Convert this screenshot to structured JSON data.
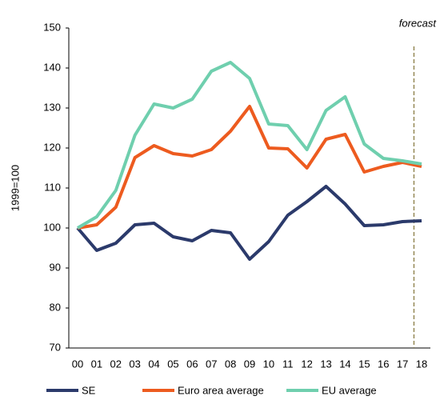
{
  "chart_data": {
    "type": "line",
    "annotation": "forecast",
    "y_label": "1999=100",
    "categories": [
      "00",
      "01",
      "02",
      "03",
      "04",
      "05",
      "06",
      "07",
      "08",
      "09",
      "10",
      "11",
      "12",
      "13",
      "14",
      "15",
      "16",
      "17",
      "18"
    ],
    "series": [
      {
        "name": "SE",
        "color": "#2b3a6b",
        "values": [
          100,
          94.4,
          96.2,
          100.8,
          101.2,
          97.8,
          96.8,
          99.4,
          98.8,
          92.2,
          96.6,
          103.2,
          106.6,
          110.4,
          106,
          100.6,
          100.8,
          101.6,
          101.8
        ]
      },
      {
        "name": "Euro area average",
        "color": "#ed5b1f",
        "values": [
          100,
          100.8,
          105.2,
          117.6,
          120.6,
          118.6,
          118,
          119.6,
          124.2,
          130.4,
          120,
          119.8,
          115,
          122.2,
          123.4,
          114,
          115.4,
          116.4,
          115.4
        ]
      },
      {
        "name": "EU average",
        "color": "#6fcfae",
        "values": [
          100,
          102.8,
          109.4,
          123.2,
          131,
          130,
          132.2,
          139.2,
          141.4,
          137.4,
          126,
          125.6,
          119.6,
          129.4,
          132.8,
          121,
          117.4,
          116.8,
          116
        ]
      }
    ],
    "ylim": [
      70,
      150
    ],
    "yticks": [
      70,
      80,
      90,
      100,
      110,
      120,
      130,
      140,
      150
    ],
    "grid": false
  }
}
